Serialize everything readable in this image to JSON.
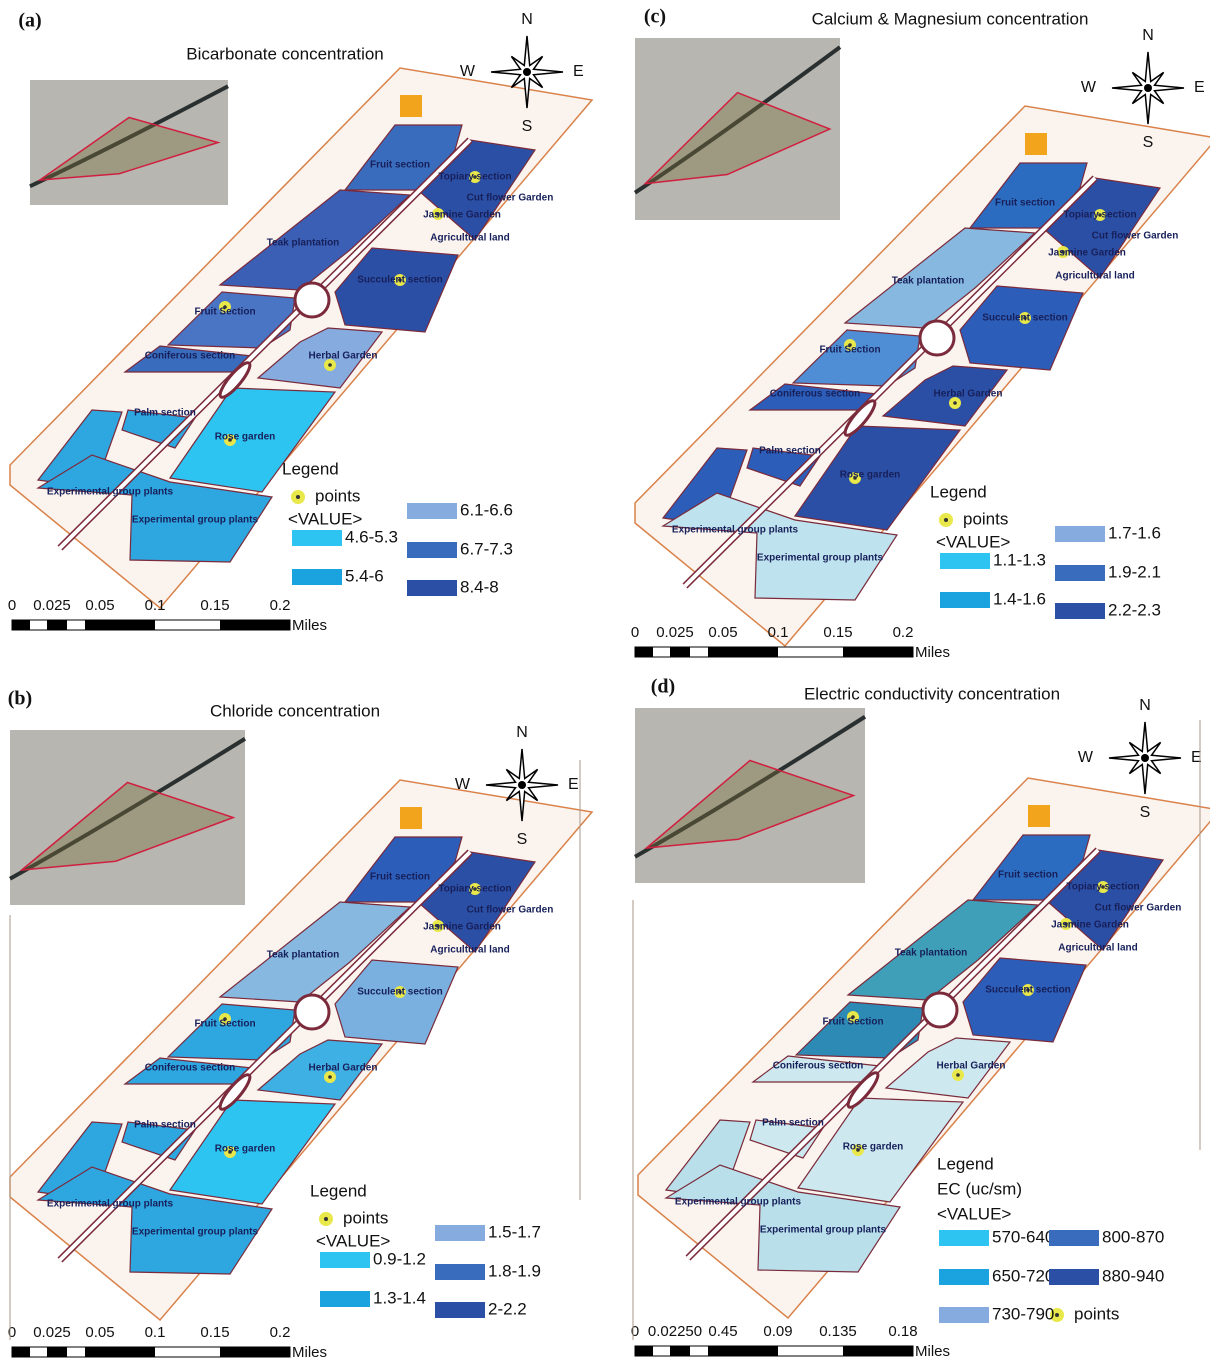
{
  "panels": [
    {
      "label": "(a)",
      "title": "Bicarbonate concentration",
      "compass": {
        "n": "N",
        "w": "W",
        "e": "E",
        "s": "S"
      },
      "sections": [
        "Fruit section",
        "Topiary section",
        "Cut flower Garden",
        "Jasmine Garden",
        "Agricultural land",
        "Teak plantation",
        "Succulent section",
        "Fruit Section",
        "Coniferous section",
        "Herbal Garden",
        "Palm section",
        "Rose garden",
        "Experimental group plants",
        "Experimental group plants"
      ],
      "legend": {
        "title": "Legend",
        "points": "points",
        "value_header": "<VALUE>",
        "items": [
          {
            "label": "4.6-5.3",
            "color": "#2ec4f1"
          },
          {
            "label": "5.4-6",
            "color": "#1aa3df"
          },
          {
            "label": "6.1-6.6",
            "color": "#86abde"
          },
          {
            "label": "6.7-7.3",
            "color": "#3a6cbd"
          },
          {
            "label": "8.4-8",
            "color": "#2c4fa6"
          }
        ]
      },
      "scale": {
        "ticks": [
          "0",
          "0.025",
          "0.05",
          "0.1",
          "0.15",
          "0.2"
        ],
        "unit": "Miles"
      }
    },
    {
      "label": "(b)",
      "title": "Chloride concentration",
      "compass": {
        "n": "N",
        "w": "W",
        "e": "E",
        "s": "S"
      },
      "sections": [
        "Fruit section",
        "Topiary section",
        "Cut flower Garden",
        "Jasmine Garden",
        "Agricultural land",
        "Teak plantation",
        "Succulent section",
        "Fruit Section",
        "Coniferous section",
        "Herbal Garden",
        "Palm section",
        "Rose garden",
        "Experimental group plants",
        "Experimental group plants"
      ],
      "legend": {
        "title": "Legend",
        "points": "points",
        "value_header": "<VALUE>",
        "items": [
          {
            "label": "0.9-1.2",
            "color": "#2ec4f1"
          },
          {
            "label": "1.3-1.4",
            "color": "#1aa3df"
          },
          {
            "label": "1.5-1.7",
            "color": "#86abde"
          },
          {
            "label": "1.8-1.9",
            "color": "#3a6cbd"
          },
          {
            "label": "2-2.2",
            "color": "#2c4fa6"
          }
        ]
      },
      "scale": {
        "ticks": [
          "0",
          "0.025",
          "0.05",
          "0.1",
          "0.15",
          "0.2"
        ],
        "unit": "Miles"
      }
    },
    {
      "label": "(c)",
      "title": "Calcium & Magnesium concentration",
      "compass": {
        "n": "N",
        "w": "W",
        "e": "E",
        "s": "S"
      },
      "sections": [
        "Fruit section",
        "Topiary section",
        "Cut flower Garden",
        "Jasmine Garden",
        "Agricultural land",
        "Teak plantation",
        "Succulent section",
        "Fruit Section",
        "Coniferous section",
        "Herbal Garden",
        "Palm section",
        "Rose garden",
        "Experimental group plants",
        "Experimental group plants"
      ],
      "legend": {
        "title": "Legend",
        "points": "points",
        "value_header": "<VALUE>",
        "items": [
          {
            "label": "1.1-1.3",
            "color": "#2ec4f1"
          },
          {
            "label": "1.4-1.6",
            "color": "#1aa3df"
          },
          {
            "label": "1.7-1.6",
            "color": "#86abde"
          },
          {
            "label": "1.9-2.1",
            "color": "#3a6cbd"
          },
          {
            "label": "2.2-2.3",
            "color": "#2c4fa6"
          }
        ]
      },
      "scale": {
        "ticks": [
          "0",
          "0.025",
          "0.05",
          "0.1",
          "0.15",
          "0.2"
        ],
        "unit": "Miles"
      }
    },
    {
      "label": "(d)",
      "title": "Electric conductivity concentration",
      "compass": {
        "n": "N",
        "w": "W",
        "e": "E",
        "s": "S"
      },
      "sections": [
        "Fruit section",
        "Topiary section",
        "Cut flower Garden",
        "Jasmine Garden",
        "Agricultural land",
        "Teak plantation",
        "Succulent section",
        "Fruit Section",
        "Coniferous section",
        "Herbal Garden",
        "Palm section",
        "Rose garden",
        "Experimental group plants",
        "Experimental group plants"
      ],
      "legend": {
        "title": "Legend",
        "subtitle": "EC (uc/sm)",
        "points": "points",
        "value_header": "<VALUE>",
        "items": [
          {
            "label": "570-640",
            "color": "#2ec4f1"
          },
          {
            "label": "650-720",
            "color": "#1aa3df"
          },
          {
            "label": "730-790",
            "color": "#86abde"
          },
          {
            "label": "800-870",
            "color": "#3a6cbd"
          },
          {
            "label": "880-940",
            "color": "#2c4fa6"
          }
        ]
      },
      "scale": {
        "ticks": [
          "0",
          "0.02250",
          "0.45",
          "0.09",
          "0.135",
          "0.18"
        ],
        "unit": "Miles"
      }
    }
  ]
}
